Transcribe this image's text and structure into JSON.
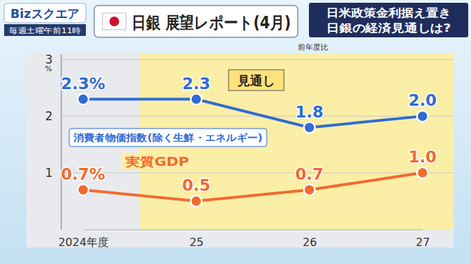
{
  "header": {
    "logo": "Bizスクエア",
    "schedule": "毎週土曜午前11時",
    "headline": [
      "日米政策金利据え置き",
      "日銀の経済見通しは?"
    ]
  },
  "chart_data": {
    "type": "line",
    "title": "日銀 展望レポート(4月)",
    "subtitle": "前年度比",
    "annotations": [
      "見通し"
    ],
    "y_label": "%",
    "categories": [
      "2024年度",
      "25",
      "26",
      "27"
    ],
    "series": [
      {
        "name": "消費者物価指数(除く生鮮・エネルギー)",
        "color": "#2f6bd3",
        "marker": "circle",
        "values": [
          2.3,
          2.3,
          1.8,
          2.0
        ],
        "value_labels": [
          "2.3%",
          "2.3",
          "1.8",
          "2.0"
        ]
      },
      {
        "name": "実質GDP",
        "color": "#f26a2e",
        "marker": "circle",
        "values": [
          0.7,
          0.5,
          0.7,
          1.0
        ],
        "value_labels": [
          "0.7%",
          "0.5",
          "0.7",
          "1.0"
        ]
      }
    ],
    "ylim": [
      0,
      3.1
    ],
    "yticks": [
      1,
      2,
      3
    ],
    "grid": true,
    "data_labels": true
  }
}
